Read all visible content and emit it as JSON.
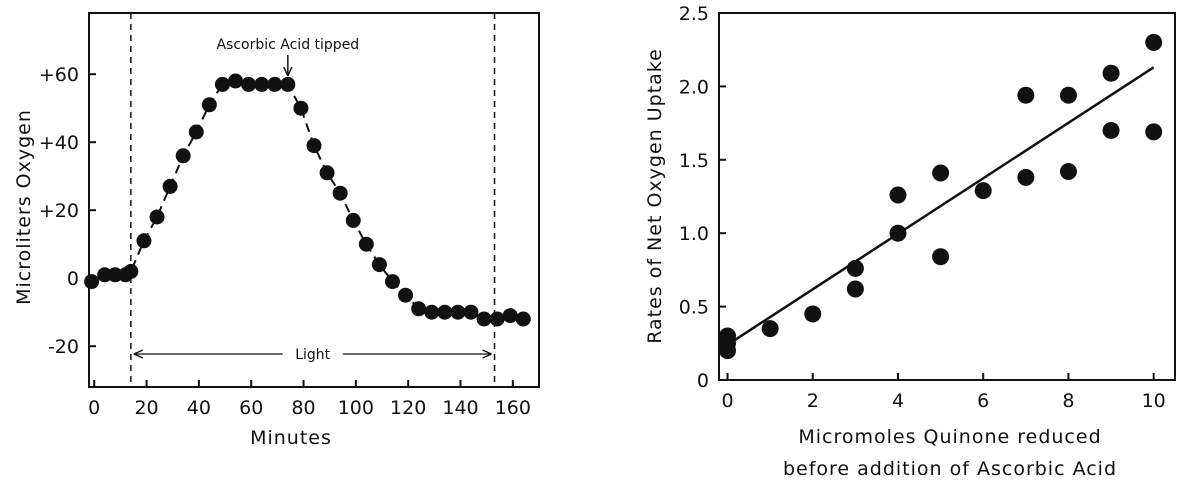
{
  "chart_data": [
    {
      "type": "scatter",
      "panel": "left",
      "title": "",
      "xlabel": "Minutes",
      "ylabel": "Microliters Oxygen",
      "xlim": [
        -2,
        170
      ],
      "ylim": [
        -32,
        78
      ],
      "x_ticks": [
        0,
        20,
        40,
        60,
        80,
        100,
        120,
        140,
        160
      ],
      "x_tick_labels": [
        "0",
        "20",
        "40",
        "60",
        "80",
        "100",
        "120",
        "140",
        "160"
      ],
      "y_ticks": [
        -20,
        0,
        20,
        40,
        60
      ],
      "y_tick_labels": [
        "-20",
        "0",
        "+20",
        "+40",
        "+60"
      ],
      "grid": false,
      "connector": "dashed",
      "annotations": {
        "ascorbic_label": "Ascorbic Acid tipped",
        "ascorbic_x": 74,
        "light_label": "Light",
        "light_start": 14,
        "light_end": 153
      },
      "points": [
        {
          "x": -1,
          "y": -1
        },
        {
          "x": 4,
          "y": 1
        },
        {
          "x": 8,
          "y": 1
        },
        {
          "x": 12,
          "y": 1
        },
        {
          "x": 14,
          "y": 2
        },
        {
          "x": 19,
          "y": 11
        },
        {
          "x": 24,
          "y": 18
        },
        {
          "x": 29,
          "y": 27
        },
        {
          "x": 34,
          "y": 36
        },
        {
          "x": 39,
          "y": 43
        },
        {
          "x": 44,
          "y": 51
        },
        {
          "x": 49,
          "y": 57
        },
        {
          "x": 54,
          "y": 58
        },
        {
          "x": 59,
          "y": 57
        },
        {
          "x": 64,
          "y": 57
        },
        {
          "x": 69,
          "y": 57
        },
        {
          "x": 74,
          "y": 57
        },
        {
          "x": 79,
          "y": 50
        },
        {
          "x": 84,
          "y": 39
        },
        {
          "x": 89,
          "y": 31
        },
        {
          "x": 94,
          "y": 25
        },
        {
          "x": 99,
          "y": 17
        },
        {
          "x": 104,
          "y": 10
        },
        {
          "x": 109,
          "y": 4
        },
        {
          "x": 114,
          "y": -1
        },
        {
          "x": 119,
          "y": -5
        },
        {
          "x": 124,
          "y": -9
        },
        {
          "x": 129,
          "y": -10
        },
        {
          "x": 134,
          "y": -10
        },
        {
          "x": 139,
          "y": -10
        },
        {
          "x": 144,
          "y": -10
        },
        {
          "x": 149,
          "y": -12
        },
        {
          "x": 154,
          "y": -12
        },
        {
          "x": 159,
          "y": -11
        },
        {
          "x": 164,
          "y": -12
        }
      ]
    },
    {
      "type": "scatter",
      "panel": "right",
      "title": "",
      "xlabel_lines": [
        "Micromoles Quinone reduced",
        "before addition of Ascorbic Acid"
      ],
      "ylabel": "Rates of Net Oxygen Uptake",
      "xlim": [
        -0.2,
        10.5
      ],
      "ylim": [
        0,
        2.5
      ],
      "x_ticks": [
        0,
        2,
        4,
        6,
        8,
        10
      ],
      "x_tick_labels": [
        "0",
        "2",
        "4",
        "6",
        "8",
        "10"
      ],
      "y_ticks": [
        0,
        0.5,
        1.0,
        1.5,
        2.0,
        2.5
      ],
      "y_tick_labels": [
        "0",
        "0.5",
        "1.0",
        "1.5",
        "2.0",
        "2.5"
      ],
      "grid": false,
      "points": [
        {
          "x": 0,
          "y": 0.2
        },
        {
          "x": 0,
          "y": 0.25
        },
        {
          "x": 0,
          "y": 0.3
        },
        {
          "x": 1,
          "y": 0.35
        },
        {
          "x": 2,
          "y": 0.45
        },
        {
          "x": 3,
          "y": 0.62
        },
        {
          "x": 3,
          "y": 0.76
        },
        {
          "x": 4,
          "y": 1.0
        },
        {
          "x": 4,
          "y": 1.26
        },
        {
          "x": 5,
          "y": 0.84
        },
        {
          "x": 5,
          "y": 1.41
        },
        {
          "x": 6,
          "y": 1.29
        },
        {
          "x": 7,
          "y": 1.38
        },
        {
          "x": 7,
          "y": 1.94
        },
        {
          "x": 8,
          "y": 1.42
        },
        {
          "x": 8,
          "y": 1.94
        },
        {
          "x": 9,
          "y": 1.7
        },
        {
          "x": 9,
          "y": 2.09
        },
        {
          "x": 10,
          "y": 1.69
        },
        {
          "x": 10,
          "y": 2.3
        }
      ],
      "trend_line": {
        "x": [
          0,
          10
        ],
        "y": [
          0.24,
          2.13
        ]
      }
    }
  ]
}
